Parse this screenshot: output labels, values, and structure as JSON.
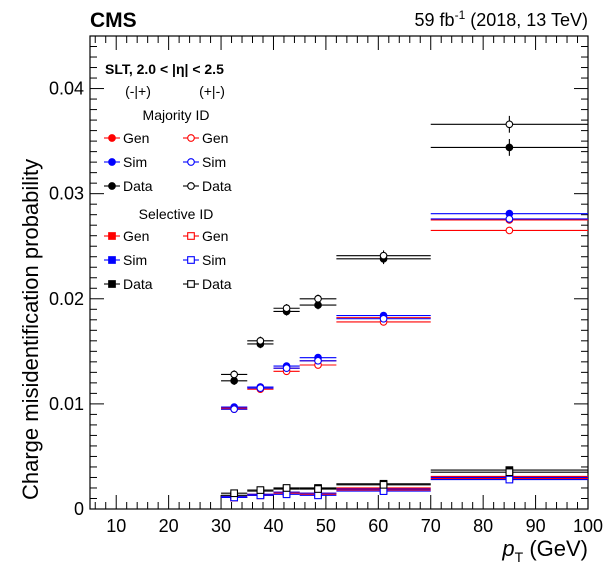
{
  "header": {
    "experiment": "CMS",
    "lumi_main": "59 fb",
    "lumi_sup": "-1",
    "lumi_rest": " (2018, 13 TeV)"
  },
  "legend": {
    "region": "SLT, 2.0 < |η| < 2.5",
    "col_left": "(-|+)",
    "col_right": "(+|-)",
    "majority": "Majority ID",
    "selective": "Selective ID",
    "gen": "Gen",
    "sim": "Sim",
    "data": "Data"
  },
  "chart_data": {
    "type": "scatter",
    "xlabel_main": "p",
    "xlabel_sub": "T",
    "xlabel_unit": " (GeV)",
    "ylabel": "Charge misidentification probability",
    "xlim": [
      5,
      100
    ],
    "ylim": [
      0,
      0.045
    ],
    "x_ticks": [
      10,
      20,
      30,
      40,
      50,
      60,
      70,
      80,
      90,
      100
    ],
    "y_ticks": [
      0,
      0.01,
      0.02,
      0.03,
      0.04
    ],
    "y_tick_labels": [
      "0",
      "0.01",
      "0.02",
      "0.03",
      "0.04"
    ],
    "bins": [
      {
        "x": 32.5,
        "lo": 30,
        "hi": 35
      },
      {
        "x": 37.5,
        "lo": 35,
        "hi": 40
      },
      {
        "x": 42.5,
        "lo": 40,
        "hi": 45
      },
      {
        "x": 48.5,
        "lo": 45,
        "hi": 52
      },
      {
        "x": 61,
        "lo": 52,
        "hi": 70
      },
      {
        "x": 85,
        "lo": 70,
        "hi": 100
      }
    ],
    "series": [
      {
        "group": "majority",
        "charge": "-|+",
        "label": "Gen",
        "color": "#ff0000",
        "marker": "circle",
        "filled": true,
        "values": [
          0.0096,
          0.0116,
          0.0134,
          0.0141,
          0.0182,
          0.0275
        ],
        "errors": [
          0.0002,
          0.0002,
          0.0002,
          0.0002,
          0.0002,
          0.0003
        ]
      },
      {
        "group": "majority",
        "charge": "-|+",
        "label": "Sim",
        "color": "#0000ff",
        "marker": "circle",
        "filled": true,
        "values": [
          0.0097,
          0.0116,
          0.0136,
          0.0144,
          0.0184,
          0.0281
        ],
        "errors": [
          0.0002,
          0.0002,
          0.0002,
          0.0002,
          0.0002,
          0.0003
        ]
      },
      {
        "group": "majority",
        "charge": "-|+",
        "label": "Data",
        "color": "#000000",
        "marker": "circle",
        "filled": true,
        "values": [
          0.0122,
          0.0157,
          0.0188,
          0.0194,
          0.0238,
          0.0344
        ],
        "errors": [
          0.0004,
          0.0004,
          0.0004,
          0.0004,
          0.0005,
          0.0008
        ]
      },
      {
        "group": "majority",
        "charge": "+|-",
        "label": "Gen",
        "color": "#ff0000",
        "marker": "circle",
        "filled": false,
        "values": [
          0.0095,
          0.0114,
          0.0131,
          0.0137,
          0.0178,
          0.0265
        ],
        "errors": [
          0.0002,
          0.0002,
          0.0002,
          0.0002,
          0.0002,
          0.0003
        ]
      },
      {
        "group": "majority",
        "charge": "+|-",
        "label": "Sim",
        "color": "#0000ff",
        "marker": "circle",
        "filled": false,
        "values": [
          0.0095,
          0.0115,
          0.0134,
          0.0141,
          0.0181,
          0.0276
        ],
        "errors": [
          0.0002,
          0.0002,
          0.0002,
          0.0002,
          0.0002,
          0.0003
        ]
      },
      {
        "group": "majority",
        "charge": "+|-",
        "label": "Data",
        "color": "#000000",
        "marker": "circle",
        "filled": false,
        "values": [
          0.0128,
          0.016,
          0.0191,
          0.02,
          0.0241,
          0.0366
        ],
        "errors": [
          0.0004,
          0.0004,
          0.0004,
          0.0004,
          0.0005,
          0.0008
        ]
      },
      {
        "group": "selective",
        "charge": "-|+",
        "label": "Gen",
        "color": "#ff0000",
        "marker": "square",
        "filled": true,
        "values": [
          0.0011,
          0.0014,
          0.0016,
          0.0015,
          0.002,
          0.0031
        ],
        "errors": [
          0.0001,
          0.0001,
          0.0001,
          0.0001,
          0.0001,
          0.0002
        ]
      },
      {
        "group": "selective",
        "charge": "-|+",
        "label": "Sim",
        "color": "#0000ff",
        "marker": "square",
        "filled": true,
        "values": [
          0.0012,
          0.0014,
          0.0016,
          0.0015,
          0.0019,
          0.003
        ],
        "errors": [
          0.0001,
          0.0001,
          0.0001,
          0.0001,
          0.0001,
          0.0002
        ]
      },
      {
        "group": "selective",
        "charge": "-|+",
        "label": "Data",
        "color": "#000000",
        "marker": "square",
        "filled": true,
        "values": [
          0.0013,
          0.0017,
          0.0019,
          0.002,
          0.0024,
          0.0037
        ],
        "errors": [
          0.0002,
          0.0002,
          0.0002,
          0.0002,
          0.0002,
          0.0003
        ]
      },
      {
        "group": "selective",
        "charge": "+|-",
        "label": "Gen",
        "color": "#ff0000",
        "marker": "square",
        "filled": false,
        "values": [
          0.0011,
          0.0013,
          0.0015,
          0.0014,
          0.0018,
          0.0029
        ],
        "errors": [
          0.0001,
          0.0001,
          0.0001,
          0.0001,
          0.0001,
          0.0002
        ]
      },
      {
        "group": "selective",
        "charge": "+|-",
        "label": "Sim",
        "color": "#0000ff",
        "marker": "square",
        "filled": false,
        "values": [
          0.0011,
          0.0013,
          0.0014,
          0.0013,
          0.0017,
          0.0028
        ],
        "errors": [
          0.0001,
          0.0001,
          0.0001,
          0.0001,
          0.0001,
          0.0002
        ]
      },
      {
        "group": "selective",
        "charge": "+|-",
        "label": "Data",
        "color": "#000000",
        "marker": "square",
        "filled": false,
        "values": [
          0.0015,
          0.0018,
          0.002,
          0.0019,
          0.0023,
          0.0035
        ],
        "errors": [
          0.0002,
          0.0002,
          0.0002,
          0.0002,
          0.0002,
          0.0003
        ]
      }
    ]
  }
}
